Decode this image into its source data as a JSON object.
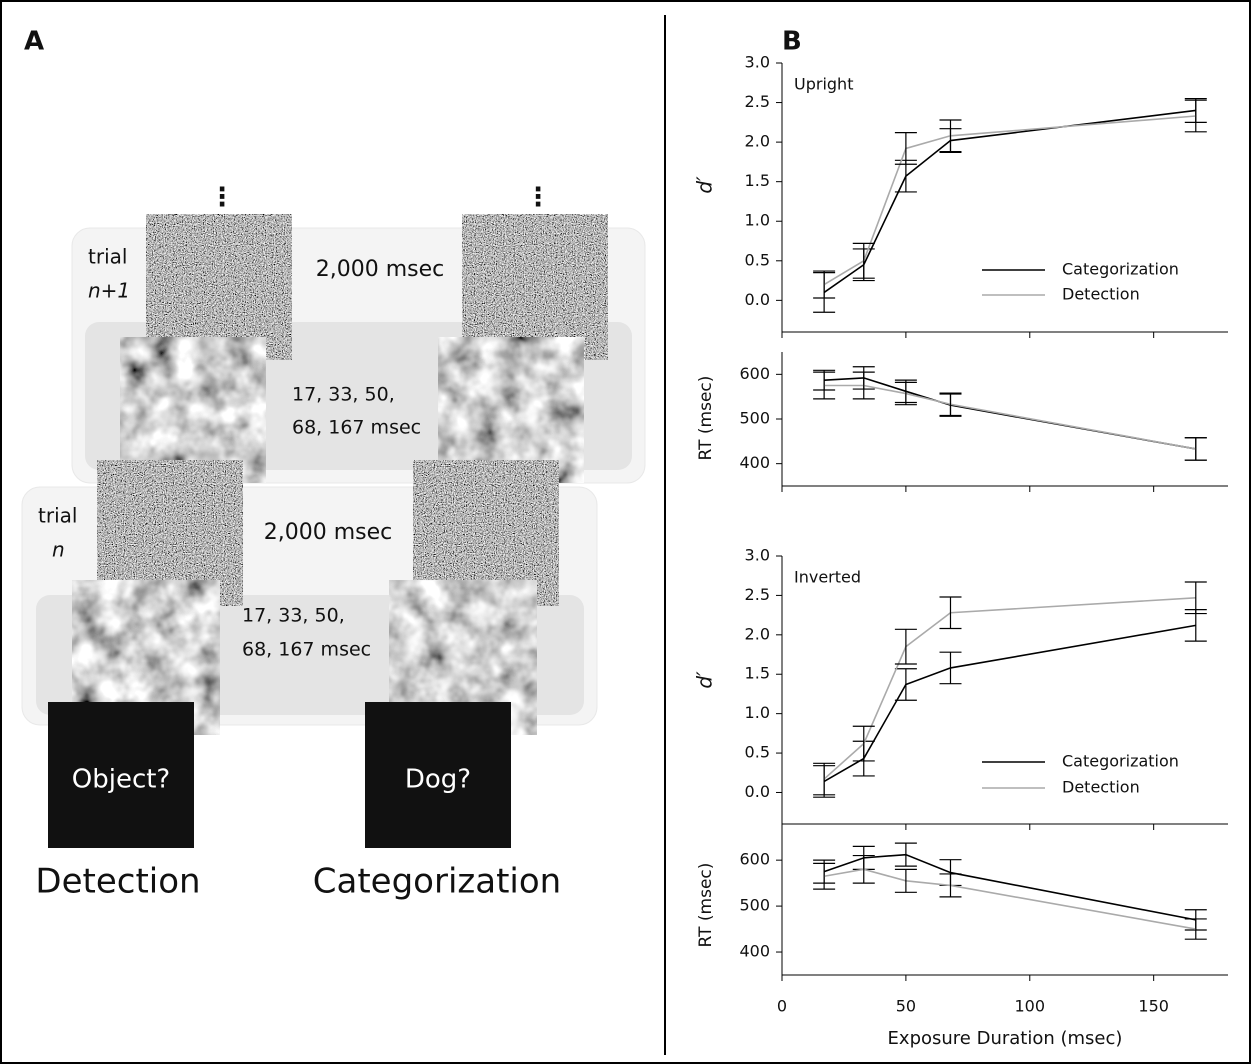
{
  "panel_a": {
    "label": "A",
    "upper_trial": {
      "word": "trial",
      "index": "n+1",
      "isi": "2,000 msec",
      "exposure_line1": "17, 33, 50,",
      "exposure_line2": "68, 167 msec"
    },
    "lower_trial": {
      "word": "trial",
      "index": "n",
      "isi": "2,000 msec",
      "exposure_line1": "17, 33, 50,",
      "exposure_line2": "68, 167 msec"
    },
    "left_task": {
      "prompt": "Object?",
      "name": "Detection"
    },
    "right_task": {
      "prompt": "Dog?",
      "name": "Categorization"
    }
  },
  "panel_b": {
    "label": "B"
  },
  "chart_data": [
    {
      "type": "line",
      "title": "Upright",
      "ylabel": "d′",
      "x": [
        17,
        33,
        50,
        68,
        167
      ],
      "xlim": [
        0,
        180
      ],
      "ylim": [
        -0.4,
        3.0
      ],
      "yticks": [
        {
          "value": 0,
          "label": "0.0"
        },
        0.5,
        {
          "value": 1,
          "label": "1.0"
        },
        1.5,
        {
          "value": 2,
          "label": "2.0"
        },
        2.5,
        {
          "value": 3,
          "label": "3.0"
        }
      ],
      "series": [
        {
          "name": "Categorization",
          "color": "#000000",
          "values": [
            0.1,
            0.45,
            1.57,
            2.02,
            2.4
          ],
          "errors": [
            0.25,
            0.2,
            0.2,
            0.15,
            0.15
          ]
        },
        {
          "name": "Detection",
          "color": "#aaaaaa",
          "values": [
            0.2,
            0.5,
            1.92,
            2.08,
            2.33
          ],
          "errors": [
            0.17,
            0.22,
            0.2,
            0.2,
            0.2
          ]
        }
      ]
    },
    {
      "type": "line",
      "ylabel": "RT (msec)",
      "x": [
        17,
        33,
        50,
        68,
        167
      ],
      "xlim": [
        0,
        180
      ],
      "ylim": [
        350,
        650
      ],
      "yticks": [
        400,
        500,
        600
      ],
      "series": [
        {
          "name": "Categorization",
          "color": "#000000",
          "values": [
            587,
            592,
            562,
            531,
            433
          ],
          "errors": [
            22,
            25,
            25,
            25,
            25
          ]
        },
        {
          "name": "Detection",
          "color": "#aaaaaa",
          "values": [
            575,
            575,
            557,
            533,
            433
          ],
          "errors": [
            30,
            30,
            25,
            25,
            25
          ]
        }
      ]
    },
    {
      "type": "line",
      "title": "Inverted",
      "ylabel": "d′",
      "x": [
        17,
        33,
        50,
        68,
        167
      ],
      "xlim": [
        0,
        180
      ],
      "ylim": [
        -0.4,
        3.0
      ],
      "yticks": [
        {
          "value": 0,
          "label": "0.0"
        },
        0.5,
        {
          "value": 1,
          "label": "1.0"
        },
        1.5,
        {
          "value": 2,
          "label": "2.0"
        },
        2.5,
        {
          "value": 3,
          "label": "3.0"
        }
      ],
      "series": [
        {
          "name": "Categorization",
          "color": "#000000",
          "values": [
            0.14,
            0.43,
            1.37,
            1.58,
            2.12
          ],
          "errors": [
            0.2,
            0.22,
            0.2,
            0.2,
            0.2
          ]
        },
        {
          "name": "Detection",
          "color": "#aaaaaa",
          "values": [
            0.17,
            0.62,
            1.85,
            2.28,
            2.47
          ],
          "errors": [
            0.2,
            0.22,
            0.22,
            0.2,
            0.2
          ]
        }
      ]
    },
    {
      "type": "line",
      "ylabel": "RT (msec)",
      "xlabel": "Exposure Duration (msec)",
      "x": [
        17,
        33,
        50,
        68,
        167
      ],
      "xlim": [
        0,
        180
      ],
      "ylim": [
        350,
        670
      ],
      "xticks": [
        0,
        50,
        100,
        150
      ],
      "yticks": [
        400,
        500,
        600
      ],
      "series": [
        {
          "name": "Categorization",
          "color": "#000000",
          "values": [
            575,
            605,
            612,
            573,
            470
          ],
          "errors": [
            25,
            25,
            25,
            28,
            22
          ]
        },
        {
          "name": "Detection",
          "color": "#aaaaaa",
          "values": [
            565,
            580,
            555,
            545,
            450
          ],
          "errors": [
            28,
            30,
            25,
            25,
            22
          ]
        }
      ]
    }
  ]
}
